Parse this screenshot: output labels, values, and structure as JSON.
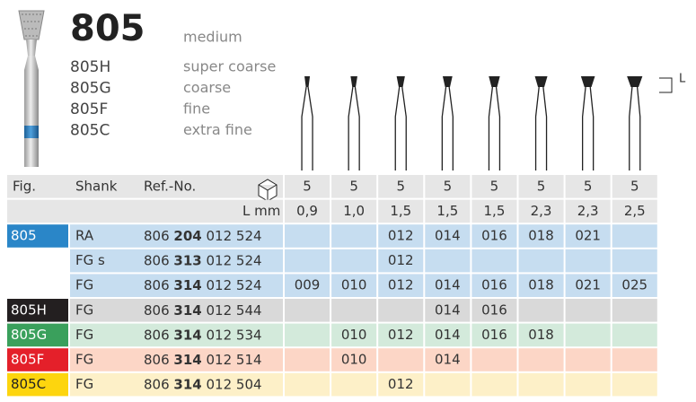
{
  "header": {
    "model": "805",
    "grit": "medium"
  },
  "grits": [
    {
      "code": "805H",
      "name": "super coarse"
    },
    {
      "code": "805G",
      "name": "coarse"
    },
    {
      "code": "805F",
      "name": "fine"
    },
    {
      "code": "805C",
      "name": "extra fine"
    }
  ],
  "length_marker": "L",
  "table": {
    "columns": [
      "Fig.",
      "Shank",
      "Ref.-No."
    ],
    "pack": [
      5,
      5,
      5,
      5,
      5,
      5,
      5,
      5
    ],
    "length_label": "L mm",
    "lengths": [
      "0,9",
      "1,0",
      "1,5",
      "1,5",
      "1,5",
      "2,3",
      "2,3",
      "2,5"
    ],
    "rows": [
      {
        "fig": "805",
        "shank": "RA",
        "ref_prefix": "806",
        "ref_bold": "204",
        "ref_suffix": "012 524",
        "sizes": [
          null,
          null,
          "012",
          "014",
          "016",
          "018",
          "021",
          null
        ]
      },
      {
        "fig": null,
        "shank": "FG s",
        "ref_prefix": "806",
        "ref_bold": "313",
        "ref_suffix": "012 524",
        "sizes": [
          null,
          null,
          "012",
          null,
          null,
          null,
          null,
          null
        ]
      },
      {
        "fig": null,
        "shank": "FG",
        "ref_prefix": "806",
        "ref_bold": "314",
        "ref_suffix": "012 524",
        "sizes": [
          "009",
          "010",
          "012",
          "014",
          "016",
          "018",
          "021",
          "025"
        ]
      },
      {
        "fig": "805H",
        "shank": "FG",
        "ref_prefix": "806",
        "ref_bold": "314",
        "ref_suffix": "012 544",
        "sizes": [
          null,
          null,
          null,
          "014",
          "016",
          null,
          null,
          null
        ]
      },
      {
        "fig": "805G",
        "shank": "FG",
        "ref_prefix": "806",
        "ref_bold": "314",
        "ref_suffix": "012 534",
        "sizes": [
          null,
          "010",
          "012",
          "014",
          "016",
          "018",
          null,
          null
        ]
      },
      {
        "fig": "805F",
        "shank": "FG",
        "ref_prefix": "806",
        "ref_bold": "314",
        "ref_suffix": "012 514",
        "sizes": [
          null,
          "010",
          null,
          "014",
          null,
          null,
          null,
          null
        ]
      },
      {
        "fig": "805C",
        "shank": "FG",
        "ref_prefix": "806",
        "ref_bold": "314",
        "ref_suffix": "012 504",
        "sizes": [
          null,
          null,
          "012",
          null,
          null,
          null,
          null,
          null
        ]
      }
    ]
  }
}
